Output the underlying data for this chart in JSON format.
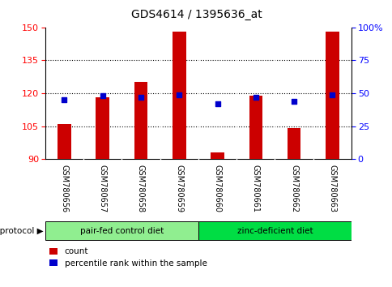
{
  "title": "GDS4614 / 1395636_at",
  "samples": [
    "GSM780656",
    "GSM780657",
    "GSM780658",
    "GSM780659",
    "GSM780660",
    "GSM780661",
    "GSM780662",
    "GSM780663"
  ],
  "counts": [
    106,
    118,
    125,
    148,
    93,
    119,
    104,
    148
  ],
  "percentile_ranks": [
    45,
    48,
    47,
    49,
    42,
    47,
    44,
    49
  ],
  "ylim_left": [
    90,
    150
  ],
  "yticks_left": [
    90,
    105,
    120,
    135,
    150
  ],
  "ylim_right": [
    0,
    100
  ],
  "yticks_right": [
    0,
    25,
    50,
    75,
    100
  ],
  "bar_color": "#cc0000",
  "dot_color": "#0000cc",
  "bar_width": 0.35,
  "groups": [
    {
      "label": "pair-fed control diet",
      "indices": [
        0,
        1,
        2,
        3
      ],
      "color": "#90ee90"
    },
    {
      "label": "zinc-deficient diet",
      "indices": [
        4,
        5,
        6,
        7
      ],
      "color": "#00dd44"
    }
  ],
  "group_label": "growth protocol",
  "legend_count_label": "count",
  "legend_percentile_label": "percentile rank within the sample",
  "grid_ticks": [
    105,
    120,
    135
  ],
  "background_color": "#ffffff",
  "label_area_color": "#cccccc"
}
